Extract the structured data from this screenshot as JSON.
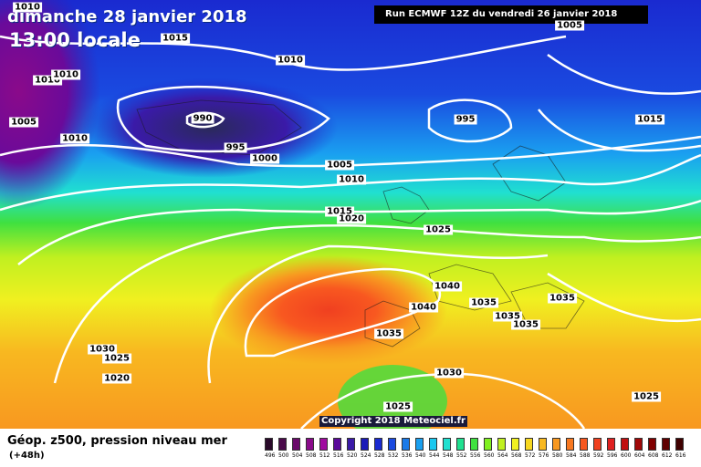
{
  "header": {
    "date": "dimanche 28 janvier 2018",
    "time": "13:00 locale",
    "run": "Run ECMWF 12Z du vendredi 26 janvier 2018"
  },
  "map": {
    "isobar_labels": [
      "1010",
      "1010",
      "1010",
      "1015",
      "1005",
      "1010",
      "1005",
      "1010",
      "990",
      "995",
      "1000",
      "1005",
      "1010",
      "1015",
      "1020",
      "1025",
      "995",
      "1015",
      "1040",
      "1040",
      "1035",
      "1035",
      "1035",
      "1035",
      "1035",
      "1030",
      "1030",
      "1025",
      "1020",
      "1025",
      "1025"
    ],
    "copyright": "Copyright 2018 Meteociel.fr"
  },
  "footer": {
    "title": "Géop. z500, pression niveau mer",
    "subtitle": "(+48h)"
  },
  "scale": {
    "labels": [
      "496",
      "500",
      "504",
      "508",
      "512",
      "516",
      "520",
      "524",
      "528",
      "532",
      "536",
      "540",
      "544",
      "548",
      "552",
      "556",
      "560",
      "564",
      "568",
      "572",
      "576",
      "580",
      "584",
      "588",
      "592",
      "596",
      "600",
      "604",
      "608",
      "612",
      "616"
    ],
    "colors": [
      "#2a0a2a",
      "#4a0a4a",
      "#6a0a6a",
      "#8a0a8a",
      "#a00ca0",
      "#5a0a9a",
      "#3a1aa8",
      "#1a1ab8",
      "#1a2ad0",
      "#1a4ae0",
      "#1a7ae8",
      "#1aa0f0",
      "#1ac8f0",
      "#20e0d0",
      "#20e090",
      "#40e040",
      "#80f020",
      "#c0f020",
      "#f0f020",
      "#f8d820",
      "#f8b820",
      "#f89820",
      "#f87820",
      "#f85820",
      "#f04020",
      "#e02020",
      "#c01010",
      "#a00808",
      "#800000",
      "#600000",
      "#400000"
    ]
  }
}
